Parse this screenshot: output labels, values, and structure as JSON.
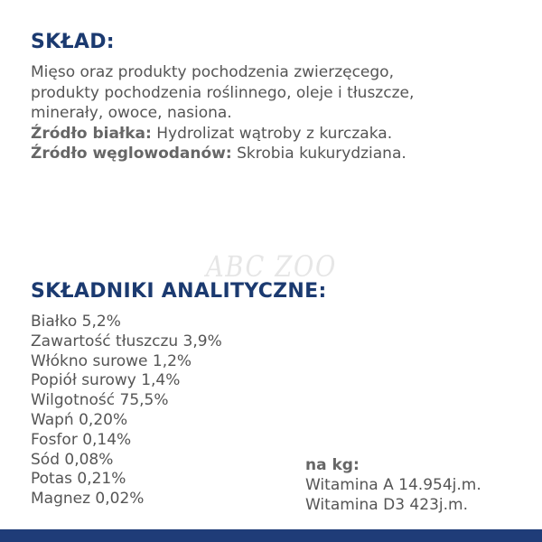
{
  "composition": {
    "title": "SKŁAD:",
    "lines": [
      "Mięso oraz produkty pochodzenia zwierzęcego,",
      "produkty pochodzenia roślinnego, oleje i tłuszcze,",
      "minerały, owoce, nasiona."
    ],
    "protein_source_label": "Źródło białka:",
    "protein_source_value": " Hydrolizat wątroby z kurczaka.",
    "carb_source_label": "Źródło węglowodanów:",
    "carb_source_value": " Skrobia kukurydziana."
  },
  "watermark": "ABC ZOO",
  "analytical": {
    "title": "SKŁADNIKI ANALITYCZNE:",
    "items": [
      "Białko 5,2%",
      "Zawartość tłuszczu 3,9%",
      "Włókno surowe 1,2%",
      "Popiół surowy 1,4%",
      "Wilgotność 75,5%",
      "Wapń 0,20%",
      "Fosfor 0,14%",
      "Sód 0,08%",
      "Potas 0,21%",
      "Magnez 0,02%"
    ],
    "per_kg_label": "na kg:",
    "vitamins": [
      "Witamina A 14.954j.m.",
      "Witamina D3 423j.m."
    ]
  },
  "colors": {
    "heading": "#1b3a70",
    "text": "#555555",
    "footer_bar": "#1f3c78"
  }
}
